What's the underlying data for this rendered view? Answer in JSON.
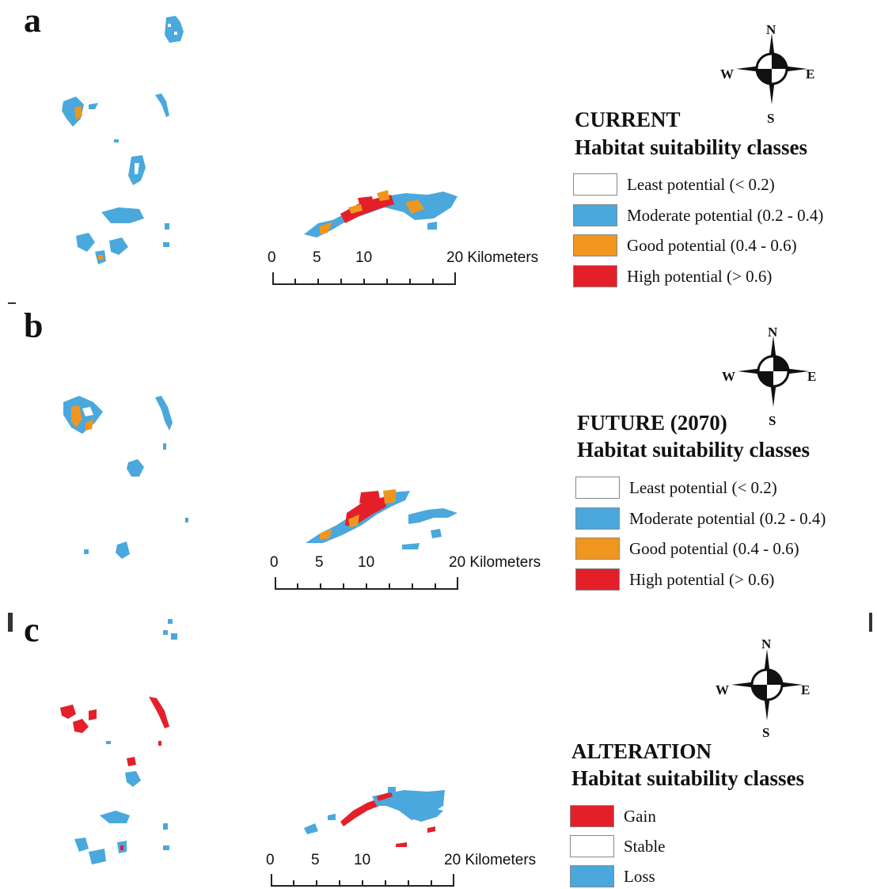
{
  "colors": {
    "least": "#ffffff",
    "moderate": "#4aa8dc",
    "good": "#f0961e",
    "high": "#e3202a",
    "gain": "#e3202a",
    "stable": "#ffffff",
    "loss": "#4aa8dc"
  },
  "compass": {
    "n": "N",
    "s": "S",
    "e": "E",
    "w": "W"
  },
  "scale": {
    "ticks": [
      "0",
      "5",
      "10"
    ],
    "end_label": "20 Kilometers"
  },
  "panels": [
    {
      "letter": "a",
      "title_line1": "CURRENT",
      "title_line2": "Habitat suitability classes",
      "legend": [
        {
          "label": "Least potential (< 0.2)",
          "color": "#ffffff"
        },
        {
          "label": "Moderate potential (0.2 - 0.4)",
          "color": "#4aa8dc"
        },
        {
          "label": "Good potential (0.4 - 0.6)",
          "color": "#f0961e"
        },
        {
          "label": "High potential (> 0.6)",
          "color": "#e3202a"
        }
      ]
    },
    {
      "letter": "b",
      "title_line1": "FUTURE (2070)",
      "title_line2": "Habitat suitability classes",
      "legend": [
        {
          "label": "Least potential (< 0.2)",
          "color": "#ffffff"
        },
        {
          "label": "Moderate potential (0.2 - 0.4)",
          "color": "#4aa8dc"
        },
        {
          "label": "Good potential (0.4 - 0.6)",
          "color": "#f0961e"
        },
        {
          "label": "High potential (> 0.6)",
          "color": "#e3202a"
        }
      ]
    },
    {
      "letter": "c",
      "title_line1": "ALTERATION",
      "title_line2": "Habitat suitability classes",
      "legend": [
        {
          "label": "Gain",
          "color": "#e3202a"
        },
        {
          "label": "Stable",
          "color": "#ffffff"
        },
        {
          "label": "Loss",
          "color": "#4aa8dc"
        }
      ]
    }
  ]
}
